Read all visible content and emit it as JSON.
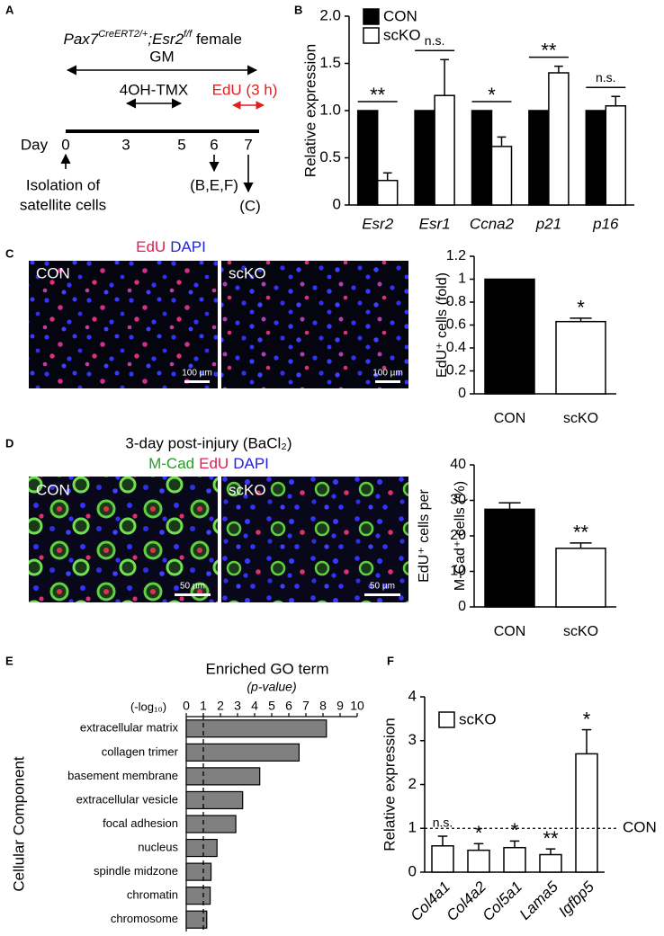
{
  "panel_labels": [
    "A",
    "B",
    "C",
    "D",
    "E",
    "F"
  ],
  "timeline": {
    "genotype": [
      "Pax7",
      "CreERT2/+",
      ";Esr2",
      "f/f",
      " female"
    ],
    "gm": "GM",
    "tmx": "4OH-TMX",
    "edu": "EdU (3 h)",
    "day": "Day",
    "days": [
      "0",
      "3",
      "5",
      "6",
      "7"
    ],
    "isolation": [
      "Isolation of",
      "satellite cells"
    ],
    "sample_b": "(B,E,F)",
    "sample_c": "(C)"
  },
  "images": {
    "c_stain": [
      "EdU",
      "DAPI"
    ],
    "d_title": "3-day post-injury (BaCl₂)",
    "d_stain": [
      "M-Cad",
      "EdU",
      "DAPI"
    ],
    "groups": [
      "CON",
      "scKO"
    ],
    "c_scale": "100 µm",
    "d_scale": "50 µm"
  },
  "chart_data": [
    {
      "type": "bar",
      "y_label": "Relative expression",
      "categories": [
        "Esr2",
        "Esr1",
        "Ccna2",
        "p21",
        "p16"
      ],
      "series": [
        {
          "name": "CON",
          "color": "#000000",
          "values": [
            1,
            1,
            1,
            1,
            1
          ]
        },
        {
          "name": "scKO",
          "color": "#ffffff",
          "values": [
            0.26,
            1.16,
            0.62,
            1.4,
            1.05
          ],
          "errors": [
            0.08,
            0.38,
            0.1,
            0.07,
            0.1
          ]
        }
      ],
      "significance": [
        "**",
        "n.s.",
        "*",
        "**",
        "n.s."
      ],
      "ylim": [
        0,
        2
      ],
      "yticks": [
        0,
        0.5,
        {
          "value": 1,
          "label": "1.0"
        },
        1.5,
        {
          "value": 2,
          "label": "2.0"
        }
      ],
      "legend": "upper left",
      "italic_categories": true
    },
    {
      "type": "bar",
      "y_label": "EdU⁺ cells (fold)",
      "categories": [
        "CON",
        "scKO"
      ],
      "values": [
        1,
        0.63
      ],
      "errors": [
        null,
        0.03
      ],
      "colors": [
        "#000000",
        "#ffffff"
      ],
      "significance": [
        null,
        "*"
      ],
      "ylim": [
        0,
        1.2
      ],
      "yticks": [
        0,
        0.2,
        0.4,
        0.6,
        0.8,
        1,
        1.2
      ]
    },
    {
      "type": "bar",
      "y_label": [
        "EdU⁺ cells per",
        "M-Cad⁺ cells  (%)"
      ],
      "categories": [
        "CON",
        "scKO"
      ],
      "values": [
        27.5,
        16.5
      ],
      "errors": [
        1.8,
        1.5
      ],
      "colors": [
        "#000000",
        "#ffffff"
      ],
      "significance": [
        null,
        "**"
      ],
      "ylim": [
        0,
        40
      ],
      "yticks": [
        0,
        10,
        20,
        30,
        40
      ]
    },
    {
      "type": "hbar",
      "title": "Enriched GO term",
      "subtitle": "(p-value)",
      "x_label": "(-log₁₀)",
      "y_label": "Cellular Component",
      "categories": [
        "extracellular matrix",
        "collagen trimer",
        "basement membrane",
        "extracellular vesicle",
        "focal adhesion",
        "nucleus",
        "spindle midzone",
        "chromatin",
        "chromosome"
      ],
      "values": [
        8.2,
        6.6,
        4.3,
        3.3,
        2.9,
        1.8,
        1.45,
        1.4,
        1.2
      ],
      "color": "#808080",
      "xlim": [
        0,
        10
      ],
      "xticks": [
        0,
        1,
        2,
        3,
        4,
        5,
        6,
        7,
        8,
        9,
        10
      ],
      "reference_line": 1
    },
    {
      "type": "bar",
      "y_label": "Relative expression",
      "categories": [
        "Col4a1",
        "Col4a2",
        "Col5a1",
        "Lama5",
        "Igfbp5"
      ],
      "series": [
        {
          "name": "scKO",
          "color": "#ffffff",
          "values": [
            0.6,
            0.5,
            0.56,
            0.4,
            2.7
          ],
          "errors": [
            0.22,
            0.15,
            0.15,
            0.13,
            0.55
          ]
        }
      ],
      "significance": [
        "n.s.",
        "*",
        "*",
        "**",
        "*"
      ],
      "reference_line": 1,
      "reference_label": "CON",
      "ylim": [
        0,
        4
      ],
      "yticks": [
        0,
        1,
        2,
        3,
        4
      ],
      "legend": "upper left",
      "italic_categories": true,
      "rotate_categories": true
    }
  ]
}
